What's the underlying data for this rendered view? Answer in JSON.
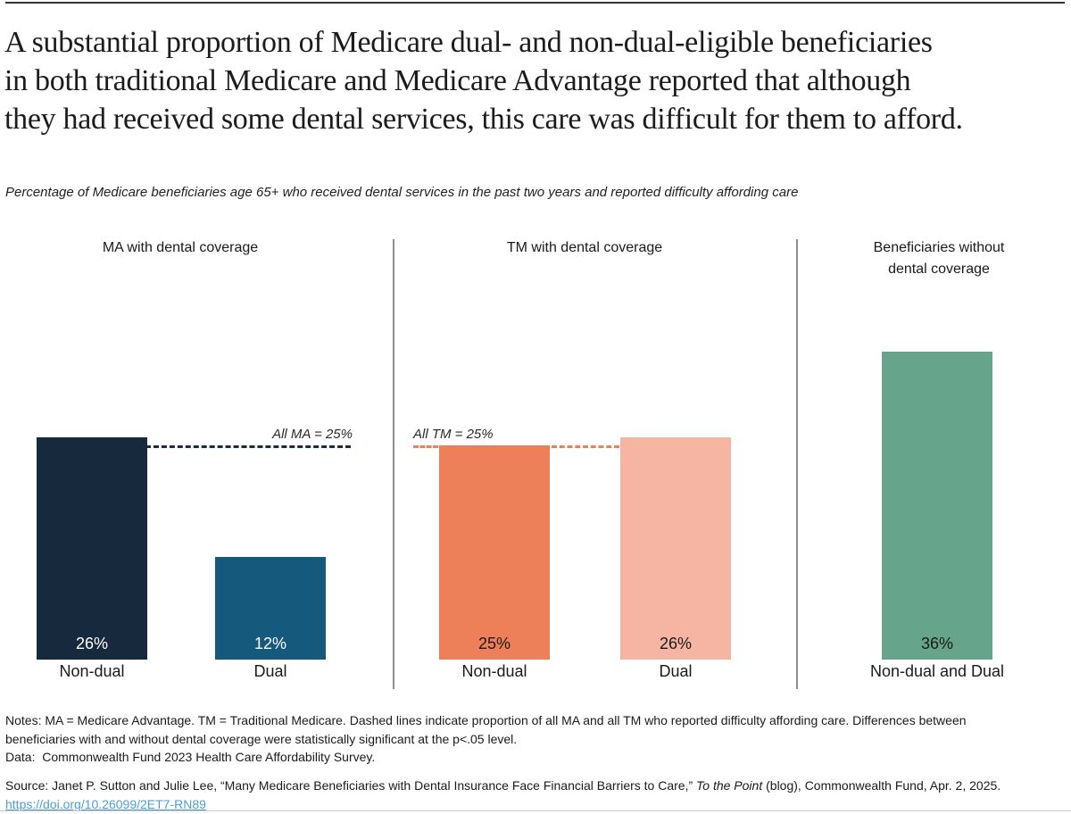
{
  "header": {
    "title_lines": [
      "A substantial proportion of Medicare dual- and non-dual-eligible beneficiaries",
      "in both traditional Medicare and Medicare Advantage reported that although",
      "they had received some dental services, this care was difficult for them to afford."
    ],
    "subtitle": "Percentage of Medicare beneficiaries age 65+ who received dental services in the past two years and reported difficulty affording care"
  },
  "chart_data": {
    "type": "bar",
    "title": "A substantial proportion of Medicare dual- and non-dual-eligible beneficiaries in both traditional Medicare and Medicare Advantage reported that although they had received some dental services, this care was difficult for them to afford.",
    "subtitle": "Percentage of Medicare beneficiaries age 65+ who received dental services in the past two years and reported difficulty affording care",
    "value_unit": "%",
    "ylim": [
      0,
      48
    ],
    "grid": false,
    "legend": "none",
    "panels": [
      {
        "name": "MA with dental coverage",
        "header_lines": [
          "MA with dental coverage"
        ],
        "bars": [
          {
            "category": "Non-dual",
            "value": 26,
            "label": "26%",
            "color": "#17293d",
            "label_color": "#ffffff"
          },
          {
            "category": "Dual",
            "value": 12,
            "label": "12%",
            "color": "#15597c",
            "label_color": "#ffffff"
          }
        ],
        "reference_line": {
          "label": "All MA = 25%",
          "value": 25,
          "color": "#1a2c42"
        }
      },
      {
        "name": "TM with dental coverage",
        "header_lines": [
          "TM with dental coverage"
        ],
        "bars": [
          {
            "category": "Non-dual",
            "value": 25,
            "label": "25%",
            "color": "#ed8058",
            "label_color": "#1a1a1a"
          },
          {
            "category": "Dual",
            "value": 26,
            "label": "26%",
            "color": "#f6b5a2",
            "label_color": "#1a1a1a"
          }
        ],
        "reference_line": {
          "label": "All TM = 25%",
          "value": 25,
          "color": "#ed8058"
        }
      },
      {
        "name": "Beneficiaries without dental coverage",
        "header_lines": [
          "Beneficiaries without",
          "dental coverage"
        ],
        "bars": [
          {
            "category": "Non-dual and Dual",
            "value": 36,
            "label": "36%",
            "color": "#66a58b",
            "label_color": "#1a1a1a"
          }
        ],
        "reference_line": null
      }
    ]
  },
  "footer": {
    "notes": "Notes: MA = Medicare Advantage. TM = Traditional Medicare. Dashed lines indicate proportion of all MA and all TM who reported difficulty affording care. Differences between beneficiaries with and without dental coverage were statistically significant at the p<.05 level.",
    "data_source": "Data:  Commonwealth Fund 2023 Health Care Affordability Survey.",
    "source_prefix": "Source: Janet P. Sutton and Julie Lee, “Many Medicare Beneficiaries with Dental Insurance Face Financial Barriers to Care,” ",
    "source_italic": "To the Point",
    "source_suffix": " (blog), Commonwealth Fund, Apr. 2, 2025.",
    "doi_link": "https://doi.org/10.26099/2ET7-RN89"
  },
  "colors": {
    "ma_nondual": "#17293d",
    "ma_dual": "#15597c",
    "tm_nondual": "#ed8058",
    "tm_dual": "#f6b5a2",
    "no_coverage": "#66a58b",
    "divider_gray": "#8e8e8e",
    "link_blue": "#4d9ed6",
    "text_dark": "#1a1a1a"
  }
}
